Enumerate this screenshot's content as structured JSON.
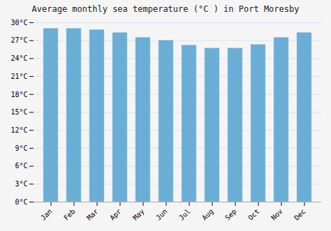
{
  "chart_data": {
    "type": "bar",
    "title": "Average monthly sea temperature (°C ) in Port Moresby",
    "categories": [
      "Jan",
      "Feb",
      "Mar",
      "Apr",
      "May",
      "Jun",
      "Jul",
      "Aug",
      "Sep",
      "Oct",
      "Nov",
      "Dec"
    ],
    "values": [
      29.0,
      29.0,
      28.8,
      28.3,
      27.5,
      27.0,
      26.2,
      25.7,
      25.7,
      26.3,
      27.5,
      28.3
    ],
    "color": "#6aaed6",
    "ylim": [
      0,
      30
    ],
    "yticks": [
      {
        "value": 0,
        "label": "0°C"
      },
      {
        "value": 3,
        "label": "3°C"
      },
      {
        "value": 6,
        "label": "6°C"
      },
      {
        "value": 9,
        "label": "9°C"
      },
      {
        "value": 12,
        "label": "12°C"
      },
      {
        "value": 15,
        "label": "15°C"
      },
      {
        "value": 18,
        "label": "18°C"
      },
      {
        "value": 21,
        "label": "21°C"
      },
      {
        "value": 24,
        "label": "24°C"
      },
      {
        "value": 27,
        "label": "27°C"
      },
      {
        "value": 30,
        "label": "30°C"
      }
    ],
    "grid": true
  }
}
